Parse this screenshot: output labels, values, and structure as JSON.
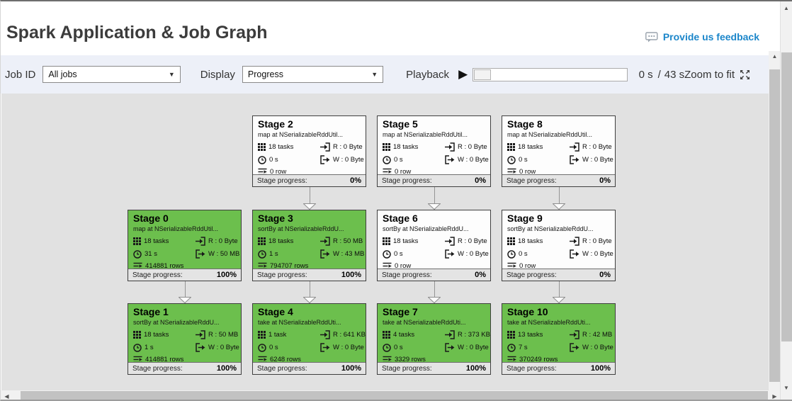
{
  "header": {
    "title": "Spark Application & Job Graph",
    "feedback": "Provide us feedback"
  },
  "toolbar": {
    "job_id_label": "Job ID",
    "job_id_value": "All jobs",
    "display_label": "Display",
    "display_value": "Progress",
    "playback_label": "Playback",
    "elapsed": "0 s",
    "divider": "/",
    "total": "43 s",
    "zoom_label": "Zoom to fit"
  },
  "colors": {
    "completed_green": "#6cbf4d",
    "pending_white": "#fdfdfd",
    "link_blue": "#1b86ca",
    "canvas_gray": "#e1e1e1"
  },
  "graph": {
    "progress_label": "Stage progress:",
    "stages": [
      {
        "id": "stage-0",
        "title": "Stage 0",
        "desc": "map at NSerializableRddUtil...",
        "tasks": "18 tasks",
        "read": "R : 0 Byte",
        "time": "31 s",
        "write": "W : 50 MB",
        "rows": "414881 rows",
        "progress": "100%",
        "state": "completed",
        "col": 1,
        "row": 2
      },
      {
        "id": "stage-1",
        "title": "Stage 1",
        "desc": "sortBy at NSerializableRddU...",
        "tasks": "18 tasks",
        "read": "R : 50 MB",
        "time": "1 s",
        "write": "W : 0 Byte",
        "rows": "414881 rows",
        "progress": "100%",
        "state": "completed",
        "col": 1,
        "row": 3
      },
      {
        "id": "stage-2",
        "title": "Stage 2",
        "desc": "map at NSerializableRddUtil...",
        "tasks": "18 tasks",
        "read": "R : 0 Byte",
        "time": "0 s",
        "write": "W : 0 Byte",
        "rows": "0 row",
        "progress": "0%",
        "state": "pending",
        "col": 2,
        "row": 1
      },
      {
        "id": "stage-3",
        "title": "Stage 3",
        "desc": "sortBy at NSerializableRddU...",
        "tasks": "18 tasks",
        "read": "R : 50 MB",
        "time": "1 s",
        "write": "W : 43 MB",
        "rows": "794707 rows",
        "progress": "100%",
        "state": "completed",
        "col": 2,
        "row": 2
      },
      {
        "id": "stage-4",
        "title": "Stage 4",
        "desc": "take at NSerializableRddUti...",
        "tasks": "1 task",
        "read": "R : 641 KB",
        "time": "0 s",
        "write": "W : 0 Byte",
        "rows": "6248 rows",
        "progress": "100%",
        "state": "completed",
        "col": 2,
        "row": 3
      },
      {
        "id": "stage-5",
        "title": "Stage 5",
        "desc": "map at NSerializableRddUtil...",
        "tasks": "18 tasks",
        "read": "R : 0 Byte",
        "time": "0 s",
        "write": "W : 0 Byte",
        "rows": "0 row",
        "progress": "0%",
        "state": "pending",
        "col": 3,
        "row": 1
      },
      {
        "id": "stage-6",
        "title": "Stage 6",
        "desc": "sortBy at NSerializableRddU...",
        "tasks": "18 tasks",
        "read": "R : 0 Byte",
        "time": "0 s",
        "write": "W : 0 Byte",
        "rows": "0 row",
        "progress": "0%",
        "state": "pending",
        "col": 3,
        "row": 2
      },
      {
        "id": "stage-7",
        "title": "Stage 7",
        "desc": "take at NSerializableRddUti...",
        "tasks": "4 tasks",
        "read": "R : 373 KB",
        "time": "0 s",
        "write": "W : 0 Byte",
        "rows": "3329 rows",
        "progress": "100%",
        "state": "completed",
        "col": 3,
        "row": 3
      },
      {
        "id": "stage-8",
        "title": "Stage 8",
        "desc": "map at NSerializableRddUtil...",
        "tasks": "18 tasks",
        "read": "R : 0 Byte",
        "time": "0 s",
        "write": "W : 0 Byte",
        "rows": "0 row",
        "progress": "0%",
        "state": "pending",
        "col": 4,
        "row": 1
      },
      {
        "id": "stage-9",
        "title": "Stage 9",
        "desc": "sortBy at NSerializableRddU...",
        "tasks": "18 tasks",
        "read": "R : 0 Byte",
        "time": "0 s",
        "write": "W : 0 Byte",
        "rows": "0 row",
        "progress": "0%",
        "state": "pending",
        "col": 4,
        "row": 2
      },
      {
        "id": "stage-10",
        "title": "Stage 10",
        "desc": "take at NSerializableRddUti...",
        "tasks": "13 tasks",
        "read": "R : 42 MB",
        "time": "7 s",
        "write": "W : 0 Byte",
        "rows": "370249 rows",
        "progress": "100%",
        "state": "completed",
        "col": 4,
        "row": 3
      }
    ],
    "edges": [
      [
        "stage-2",
        "stage-3"
      ],
      [
        "stage-5",
        "stage-6"
      ],
      [
        "stage-8",
        "stage-9"
      ],
      [
        "stage-0",
        "stage-1"
      ],
      [
        "stage-3",
        "stage-4"
      ],
      [
        "stage-6",
        "stage-7"
      ],
      [
        "stage-9",
        "stage-10"
      ]
    ]
  }
}
